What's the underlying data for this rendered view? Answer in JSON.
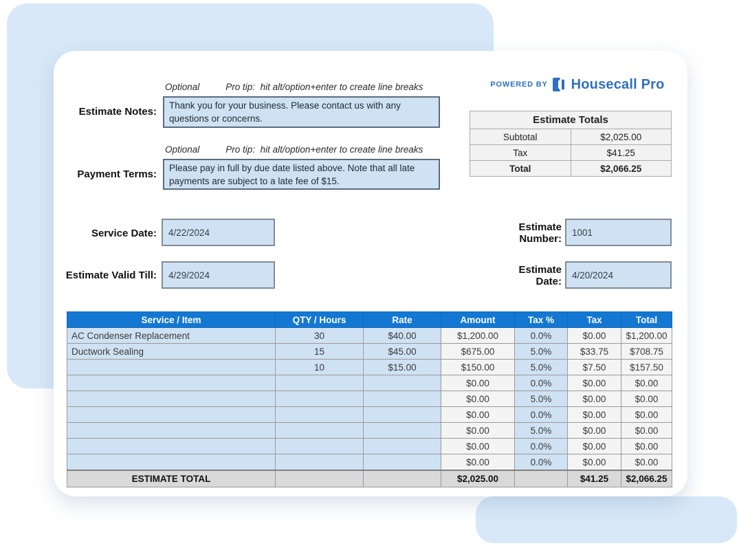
{
  "brand": {
    "powered_by": "POWERED BY",
    "name": "Housecall Pro"
  },
  "hints": {
    "optional": "Optional",
    "pro_tip": "Pro tip:  hit alt/option+enter to create line breaks"
  },
  "notes": {
    "label": "Estimate Notes:",
    "value": "Thank you for your business. Please contact us with any questions or concerns."
  },
  "payment_terms": {
    "label": "Payment Terms:",
    "value": "Please pay in full by due date listed above. Note that all late payments are subject to a late fee of $15."
  },
  "totals_box": {
    "title": "Estimate Totals",
    "rows": [
      {
        "label": "Subtotal",
        "value": "$2,025.00"
      },
      {
        "label": "Tax",
        "value": "$41.25"
      },
      {
        "label": "Total",
        "value": "$2,066.25"
      }
    ]
  },
  "fields": {
    "service_date": {
      "label": "Service Date:",
      "value": "4/22/2024"
    },
    "estimate_valid_till": {
      "label": "Estimate Valid Till:",
      "value": "4/29/2024"
    },
    "estimate_number": {
      "label": "Estimate\nNumber:",
      "value": "1001"
    },
    "estimate_date": {
      "label": "Estimate\nDate:",
      "value": "4/20/2024"
    }
  },
  "line_items": {
    "headers": [
      "Service / Item",
      "QTY / Hours",
      "Rate",
      "Amount",
      "Tax %",
      "Tax",
      "Total"
    ],
    "rows": [
      [
        "AC Condenser Replacement",
        "30",
        "$40.00",
        "$1,200.00",
        "0.0%",
        "$0.00",
        "$1,200.00"
      ],
      [
        "Ductwork Sealing",
        "15",
        "$45.00",
        "$675.00",
        "5.0%",
        "$33.75",
        "$708.75"
      ],
      [
        "",
        "10",
        "$15.00",
        "$150.00",
        "5.0%",
        "$7.50",
        "$157.50"
      ],
      [
        "",
        "",
        "",
        "$0.00",
        "0.0%",
        "$0.00",
        "$0.00"
      ],
      [
        "",
        "",
        "",
        "$0.00",
        "5.0%",
        "$0.00",
        "$0.00"
      ],
      [
        "",
        "",
        "",
        "$0.00",
        "0.0%",
        "$0.00",
        "$0.00"
      ],
      [
        "",
        "",
        "",
        "$0.00",
        "5.0%",
        "$0.00",
        "$0.00"
      ],
      [
        "",
        "",
        "",
        "$0.00",
        "0.0%",
        "$0.00",
        "$0.00"
      ],
      [
        "",
        "",
        "",
        "$0.00",
        "0.0%",
        "$0.00",
        "$0.00"
      ]
    ],
    "footer": [
      "ESTIMATE TOTAL",
      "",
      "",
      "$2,025.00",
      "",
      "$41.25",
      "$2,066.25"
    ]
  },
  "colors": {
    "header_blue": "#1478d2",
    "input_fill": "#cfe2f3",
    "calc_fill": "#f4f4f4",
    "footer_fill": "#d9d9d9",
    "totals_fill": "#f2f2f2",
    "background_blue": "#d8e8f8",
    "brand_blue": "#2f6fc0"
  }
}
